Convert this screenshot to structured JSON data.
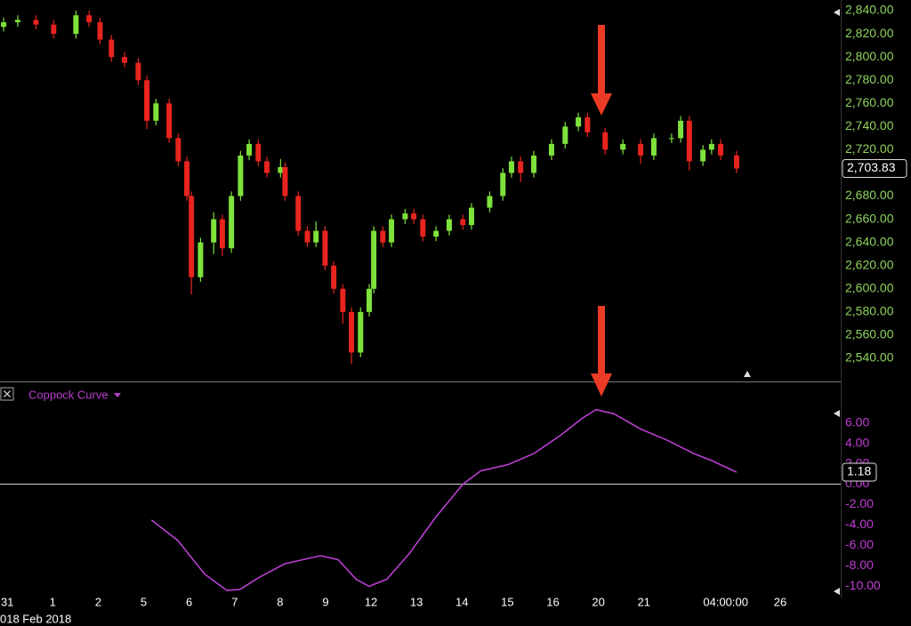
{
  "chart_data": [
    {
      "type": "candlestick",
      "up_color": "#7ee23c",
      "down_color": "#e8241f",
      "tick_color": "#8fd35c",
      "grid": true,
      "xlim": [
        -0.16,
        18.33
      ],
      "ylim": [
        2520.8,
        2849.2
      ],
      "yticks": [
        {
          "value": 2840,
          "label": "2,840.00"
        },
        {
          "value": 2820,
          "label": "2,820.00"
        },
        {
          "value": 2800,
          "label": "2,800.00"
        },
        {
          "value": 2780,
          "label": "2,780.00"
        },
        {
          "value": 2760,
          "label": "2,760.00"
        },
        {
          "value": 2740,
          "label": "2,740.00"
        },
        {
          "value": 2720,
          "label": "2,720.00"
        },
        {
          "value": 2700,
          "label": "2,700.00"
        },
        {
          "value": 2680,
          "label": "2,680.00"
        },
        {
          "value": 2660,
          "label": "2,660.00"
        },
        {
          "value": 2640,
          "label": "2,640.00"
        },
        {
          "value": 2620,
          "label": "2,620.00"
        },
        {
          "value": 2600,
          "label": "2,600.00"
        },
        {
          "value": 2580,
          "label": "2,580.00"
        },
        {
          "value": 2560,
          "label": "2,560.00"
        },
        {
          "value": 2540,
          "label": "2,540.00"
        }
      ],
      "last_price": {
        "value": 2703.83,
        "label": "2,703.83"
      },
      "x": [
        -0.08,
        0.23,
        0.63,
        1.02,
        1.51,
        1.8,
        2.04,
        2.29,
        2.58,
        2.88,
        3.07,
        3.27,
        3.56,
        3.76,
        3.95,
        4.05,
        4.25,
        4.54,
        4.73,
        4.93,
        5.13,
        5.32,
        5.52,
        5.71,
        6.01,
        6.11,
        6.4,
        6.6,
        6.79,
        6.99,
        7.18,
        7.38,
        7.57,
        7.77,
        7.96,
        8.06,
        8.26,
        8.45,
        8.75,
        8.94,
        9.14,
        9.43,
        9.72,
        10.02,
        10.21,
        10.61,
        10.9,
        11.09,
        11.29,
        11.58,
        11.97,
        12.27,
        12.56,
        12.76,
        13.15,
        13.54,
        13.93,
        14.22,
        14.61,
        14.81,
        15.0,
        15.3,
        15.49,
        15.69,
        16.04
      ],
      "open": [
        2826,
        2830,
        2832,
        2828,
        2820,
        2836,
        2830,
        2815,
        2800,
        2795,
        2780,
        2745,
        2760,
        2730,
        2710,
        2680,
        2610,
        2640,
        2660,
        2635,
        2680,
        2715,
        2725,
        2710,
        2700,
        2705,
        2680,
        2650,
        2640,
        2650,
        2620,
        2600,
        2580,
        2545,
        2580,
        2600,
        2650,
        2640,
        2660,
        2665,
        2660,
        2645,
        2650,
        2660,
        2655,
        2670,
        2680,
        2700,
        2710,
        2700,
        2715,
        2725,
        2740,
        2748,
        2735,
        2720,
        2725,
        2715,
        2730,
        2730,
        2745,
        2710,
        2720,
        2725,
        2715
      ],
      "high": [
        2834,
        2836,
        2836,
        2832,
        2840,
        2840,
        2834,
        2819,
        2804,
        2799,
        2784,
        2764,
        2764,
        2734,
        2714,
        2684,
        2644,
        2666,
        2664,
        2684,
        2719,
        2729,
        2729,
        2714,
        2712,
        2709,
        2684,
        2654,
        2658,
        2654,
        2624,
        2604,
        2584,
        2584,
        2604,
        2654,
        2654,
        2664,
        2669,
        2669,
        2664,
        2654,
        2664,
        2664,
        2674,
        2684,
        2704,
        2714,
        2714,
        2719,
        2729,
        2744,
        2752,
        2752,
        2739,
        2729,
        2729,
        2734,
        2734,
        2749,
        2749,
        2724,
        2729,
        2729,
        2719
      ],
      "low": [
        2822,
        2826,
        2824,
        2816,
        2816,
        2826,
        2811,
        2796,
        2791,
        2776,
        2738,
        2741,
        2726,
        2706,
        2676,
        2595,
        2606,
        2630,
        2628,
        2631,
        2676,
        2711,
        2706,
        2696,
        2696,
        2676,
        2646,
        2636,
        2636,
        2616,
        2596,
        2570,
        2535,
        2541,
        2576,
        2596,
        2636,
        2636,
        2656,
        2656,
        2641,
        2641,
        2646,
        2651,
        2651,
        2666,
        2676,
        2696,
        2692,
        2696,
        2711,
        2721,
        2736,
        2731,
        2716,
        2716,
        2708,
        2711,
        2726,
        2726,
        2702,
        2706,
        2716,
        2711,
        2700
      ],
      "close": [
        2830,
        2832,
        2828,
        2820,
        2836,
        2830,
        2815,
        2800,
        2795,
        2780,
        2745,
        2760,
        2730,
        2710,
        2680,
        2610,
        2640,
        2660,
        2635,
        2680,
        2715,
        2725,
        2710,
        2700,
        2705,
        2680,
        2650,
        2640,
        2650,
        2620,
        2600,
        2580,
        2545,
        2580,
        2600,
        2650,
        2640,
        2660,
        2665,
        2660,
        2645,
        2650,
        2660,
        2655,
        2670,
        2680,
        2700,
        2710,
        2700,
        2715,
        2725,
        2740,
        2748,
        2735,
        2720,
        2725,
        2715,
        2730,
        2730,
        2745,
        2710,
        2720,
        2725,
        2715,
        2703.83
      ]
    },
    {
      "type": "line",
      "grid": true,
      "tick_color": "#c43cd8",
      "xlim": [
        -0.16,
        18.33
      ],
      "ylim": [
        -11.1,
        9.8
      ],
      "xticks": [
        {
          "value": 0,
          "label": "31"
        },
        1,
        2,
        {
          "value": 3,
          "label": "5"
        },
        {
          "value": 4,
          "label": "6"
        },
        {
          "value": 5,
          "label": "7"
        },
        {
          "value": 6,
          "label": "8"
        },
        {
          "value": 7,
          "label": "9"
        },
        {
          "value": 8,
          "label": "12"
        },
        {
          "value": 9,
          "label": "13"
        },
        {
          "value": 10,
          "label": "14"
        },
        {
          "value": 11,
          "label": "15"
        },
        {
          "value": 12,
          "label": "16"
        },
        {
          "value": 13,
          "label": "20"
        },
        {
          "value": 14,
          "label": "21"
        },
        {
          "value": 15.8,
          "label": "04:00:00"
        },
        {
          "value": 17,
          "label": "26"
        }
      ],
      "xlabel": "018 Feb 2018",
      "yticks": [
        {
          "value": 6,
          "label": "6.00"
        },
        {
          "value": 4,
          "label": "4.00"
        },
        {
          "value": 2,
          "label": "2.00"
        },
        {
          "value": 0,
          "label": "0.00"
        },
        {
          "value": -2,
          "label": "-2.00"
        },
        {
          "value": -4,
          "label": "-4.00"
        },
        {
          "value": -6,
          "label": "-6.00"
        },
        {
          "value": -8,
          "label": "-8.00"
        },
        {
          "value": -10,
          "label": "-10.00"
        }
      ],
      "x": [
        3.17,
        3.75,
        4.34,
        4.83,
        5.12,
        5.51,
        6.1,
        6.89,
        7.28,
        7.67,
        7.96,
        8.35,
        8.84,
        9.43,
        10.02,
        10.41,
        11.0,
        11.58,
        12.17,
        12.66,
        12.95,
        13.34,
        13.93,
        14.52,
        15.1,
        15.5,
        16.04
      ],
      "series": [
        {
          "name": "Coppock Curve",
          "color": "#b93fd0",
          "values": [
            -3.5,
            -5.5,
            -8.8,
            -10.4,
            -10.3,
            -9.2,
            -7.8,
            -7.0,
            -7.4,
            -9.3,
            -10.0,
            -9.3,
            -6.8,
            -3.2,
            0.0,
            1.3,
            1.9,
            3.0,
            4.8,
            6.5,
            7.3,
            6.9,
            5.4,
            4.3,
            3.0,
            2.3,
            1.18
          ]
        }
      ]
    }
  ]
}
